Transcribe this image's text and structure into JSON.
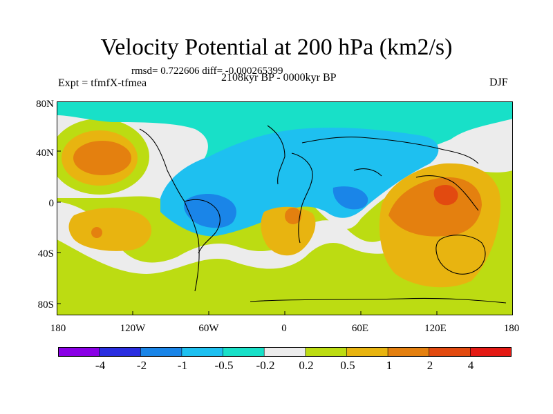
{
  "title": "Velocity Potential at 200 hPa (km2/s)",
  "stats_line": "rmsd= 0.722606 diff= -0.000265399",
  "experiment": "Expt = tfmfX-tfmea",
  "period": "2108kyr BP - 0000kyr BP",
  "season": "DJF",
  "lat_labels": [
    "80N",
    "40N",
    "0",
    "40S",
    "80S"
  ],
  "lon_labels": [
    "180",
    "120W",
    "60W",
    "0",
    "60E",
    "120E",
    "180"
  ],
  "colorbar": {
    "labels": [
      "-4",
      "-2",
      "-1",
      "-0.5",
      "-0.2",
      "0.2",
      "0.5",
      "1",
      "2",
      "4"
    ],
    "colors": [
      "#8a00e6",
      "#2a2ee0",
      "#1a85e8",
      "#1ec0f0",
      "#18e0c8",
      "#ececec",
      "#bcdc12",
      "#e8b410",
      "#e4800f",
      "#e24a10",
      "#e41a14"
    ]
  },
  "map_colors": {
    "neutral": "#ececec",
    "pos_weak": "#bcdc12",
    "pos_mid": "#e8b410",
    "pos_strong": "#e4800f",
    "pos_max": "#e24a10",
    "neg_weak": "#18e0c8",
    "neg_mid": "#1ec0f0",
    "neg_strong": "#1a85e8",
    "coast": "#000000"
  }
}
